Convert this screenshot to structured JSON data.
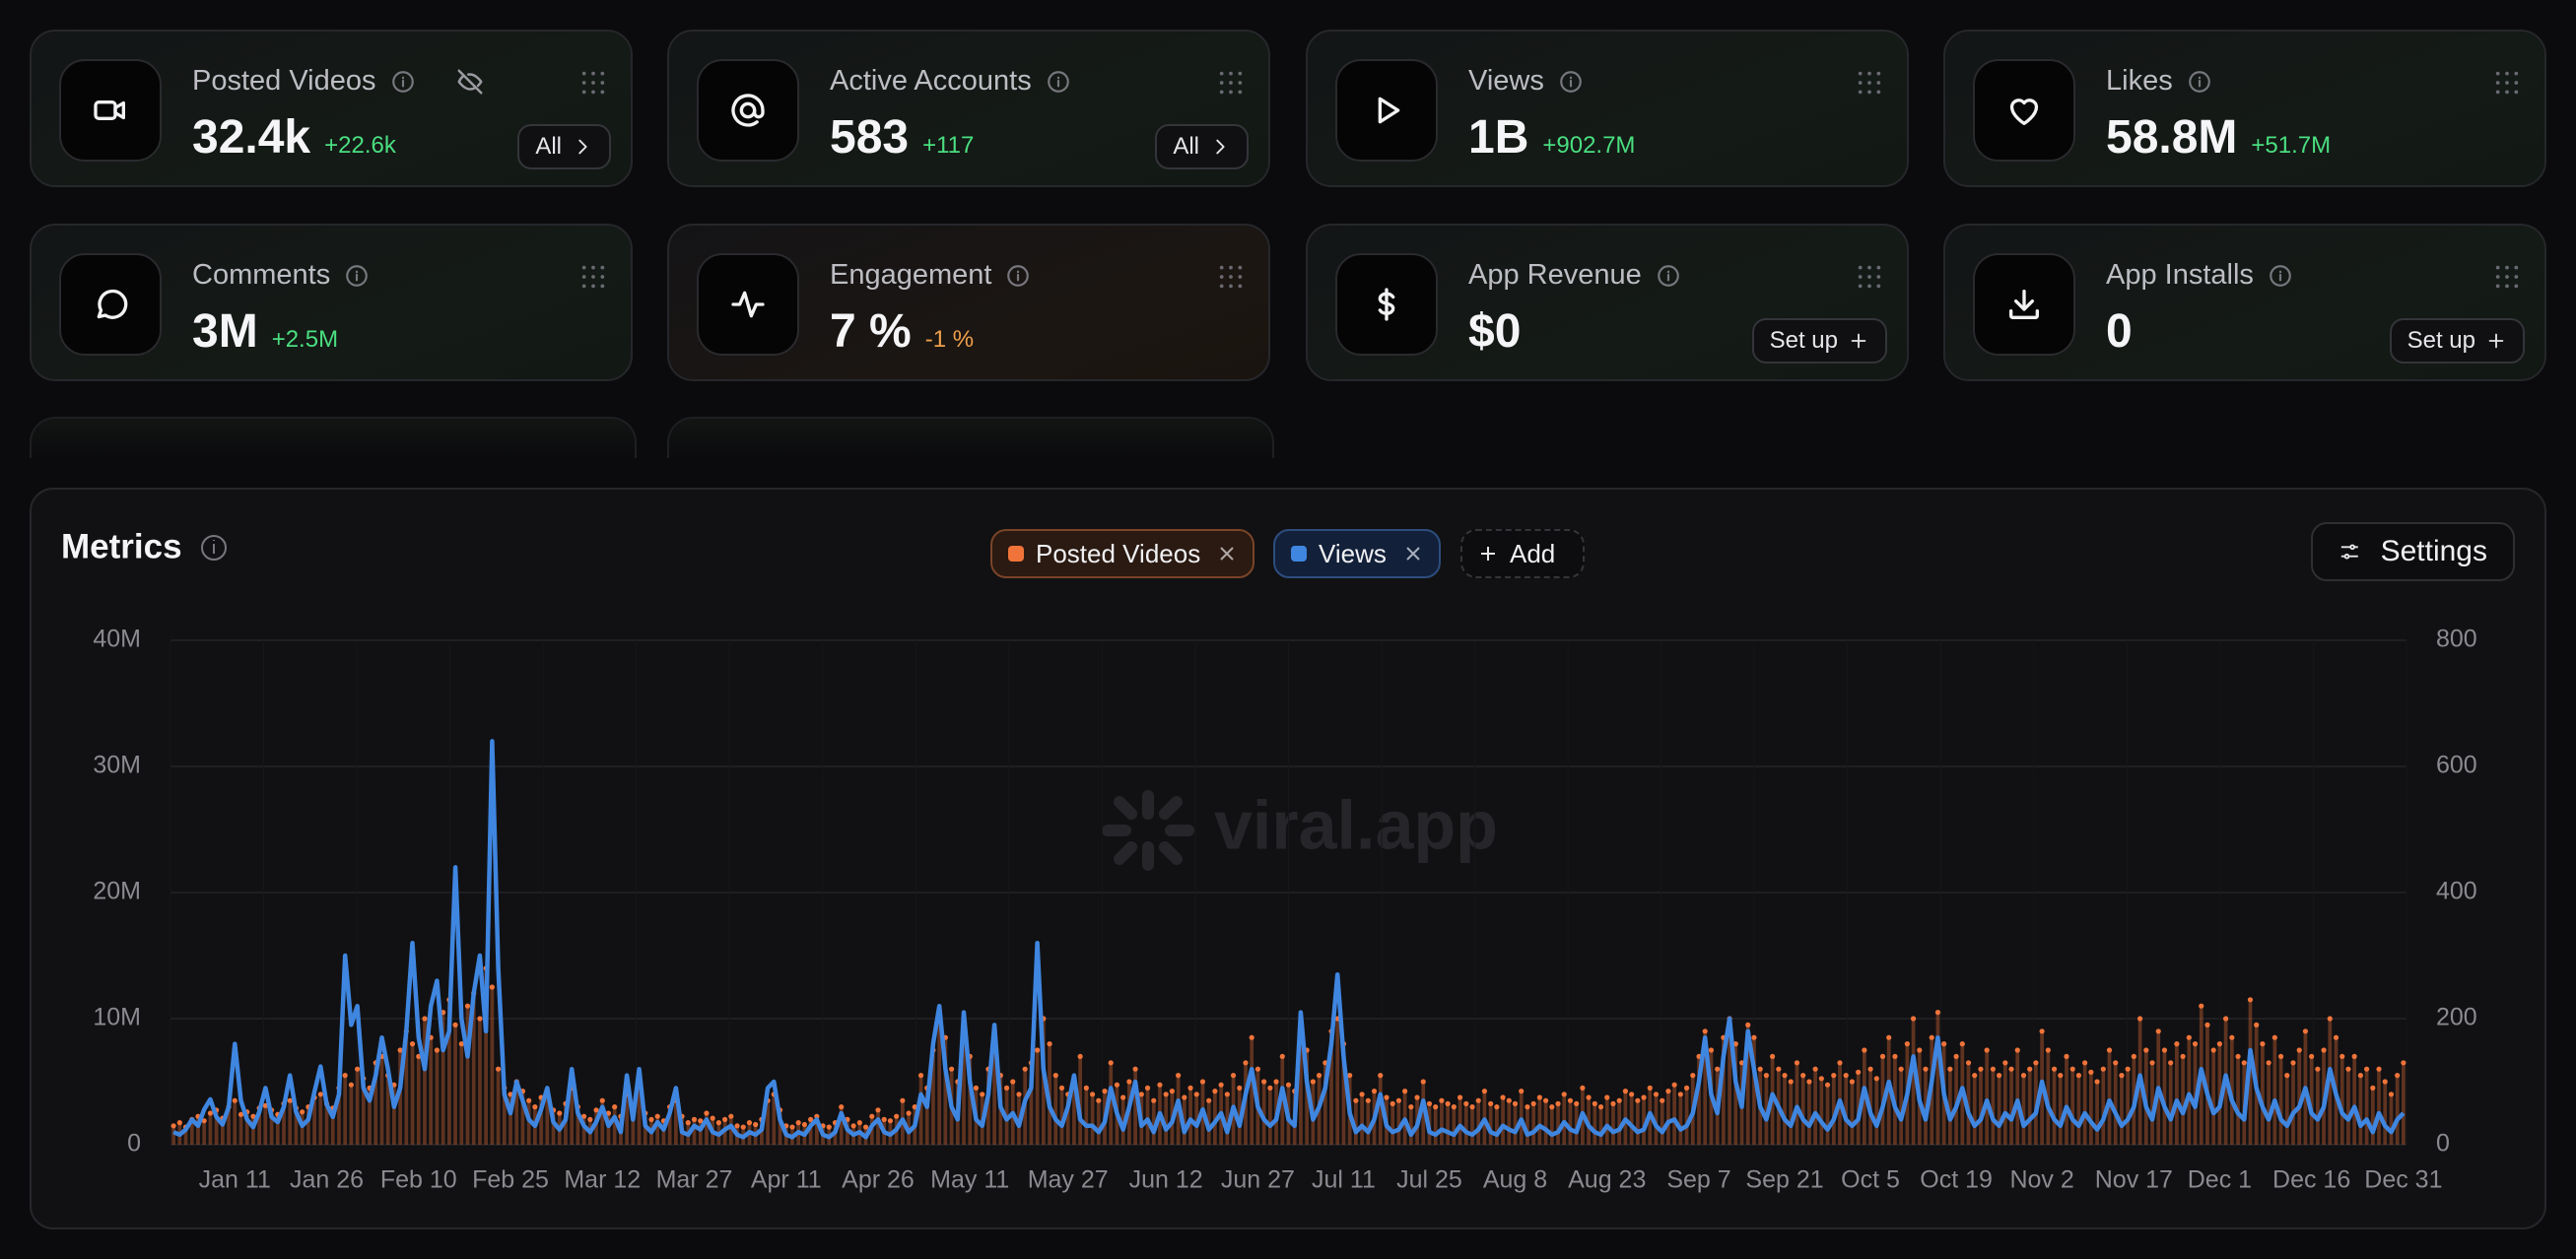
{
  "cards": [
    {
      "title": "Posted Videos",
      "value": "32.4k",
      "change": "+22.6k",
      "change_color": "#4ade80",
      "button": "All"
    },
    {
      "title": "Active Accounts",
      "value": "583",
      "change": "+117",
      "change_color": "#4ade80",
      "button": "All"
    },
    {
      "title": "Views",
      "value": "1B",
      "change": "+902.7M",
      "change_color": "#4ade80"
    },
    {
      "title": "Likes",
      "value": "58.8M",
      "change": "+51.7M",
      "change_color": "#4ade80"
    },
    {
      "title": "Comments",
      "value": "3M",
      "change": "+2.5M",
      "change_color": "#4ade80"
    },
    {
      "title": "Engagement",
      "value": "7 %",
      "change": "-1 %",
      "change_color": "#f0a04b"
    },
    {
      "title": "App Revenue",
      "value": "$0",
      "button": "Set up"
    },
    {
      "title": "App Installs",
      "value": "0",
      "button": "Set up"
    }
  ],
  "add_button": "Add",
  "settings_button": "Settings",
  "watermark": "viral.app",
  "chart_data": {
    "type": "combo",
    "title": "Metrics",
    "grid": true,
    "categories": [
      null,
      null,
      null,
      null,
      null,
      null,
      null,
      null,
      null,
      null,
      "Jan 11",
      null,
      null,
      null,
      null,
      null,
      null,
      null,
      null,
      null,
      null,
      null,
      null,
      null,
      null,
      "Jan 26",
      null,
      null,
      null,
      null,
      null,
      null,
      null,
      null,
      null,
      null,
      null,
      null,
      null,
      null,
      "Feb 10",
      null,
      null,
      null,
      null,
      null,
      null,
      null,
      null,
      null,
      null,
      null,
      null,
      null,
      null,
      "Feb 25",
      null,
      null,
      null,
      null,
      null,
      null,
      null,
      null,
      null,
      null,
      null,
      null,
      null,
      null,
      "Mar 12",
      null,
      null,
      null,
      null,
      null,
      null,
      null,
      null,
      null,
      null,
      null,
      null,
      null,
      null,
      "Mar 27",
      null,
      null,
      null,
      null,
      null,
      null,
      null,
      null,
      null,
      null,
      null,
      null,
      null,
      null,
      "Apr 11",
      null,
      null,
      null,
      null,
      null,
      null,
      null,
      null,
      null,
      null,
      null,
      null,
      null,
      null,
      "Apr 26",
      null,
      null,
      null,
      null,
      null,
      null,
      null,
      null,
      null,
      null,
      null,
      null,
      null,
      null,
      "May 11",
      null,
      null,
      null,
      null,
      null,
      null,
      null,
      null,
      null,
      null,
      null,
      null,
      null,
      null,
      null,
      "May 27",
      null,
      null,
      null,
      null,
      null,
      null,
      null,
      null,
      null,
      null,
      null,
      null,
      null,
      null,
      null,
      "Jun 12",
      null,
      null,
      null,
      null,
      null,
      null,
      null,
      null,
      null,
      null,
      null,
      null,
      null,
      null,
      "Jun 27",
      null,
      null,
      null,
      null,
      null,
      null,
      null,
      null,
      null,
      null,
      null,
      null,
      null,
      "Jul 11",
      null,
      null,
      null,
      null,
      null,
      null,
      null,
      null,
      null,
      null,
      null,
      null,
      null,
      "Jul 25",
      null,
      null,
      null,
      null,
      null,
      null,
      null,
      null,
      null,
      null,
      null,
      null,
      null,
      "Aug 8",
      null,
      null,
      null,
      null,
      null,
      null,
      null,
      null,
      null,
      null,
      null,
      null,
      null,
      null,
      "Aug 23",
      null,
      null,
      null,
      null,
      null,
      null,
      null,
      null,
      null,
      null,
      null,
      null,
      null,
      null,
      "Sep 7",
      null,
      null,
      null,
      null,
      null,
      null,
      null,
      null,
      null,
      null,
      null,
      null,
      null,
      "Sep 21",
      null,
      null,
      null,
      null,
      null,
      null,
      null,
      null,
      null,
      null,
      null,
      null,
      null,
      "Oct 5",
      null,
      null,
      null,
      null,
      null,
      null,
      null,
      null,
      null,
      null,
      null,
      null,
      null,
      "Oct 19",
      null,
      null,
      null,
      null,
      null,
      null,
      null,
      null,
      null,
      null,
      null,
      null,
      null,
      "Nov 2",
      null,
      null,
      null,
      null,
      null,
      null,
      null,
      null,
      null,
      null,
      null,
      null,
      null,
      null,
      "Nov 17",
      null,
      null,
      null,
      null,
      null,
      null,
      null,
      null,
      null,
      null,
      null,
      null,
      null,
      "Dec 1",
      null,
      null,
      null,
      null,
      null,
      null,
      null,
      null,
      null,
      null,
      null,
      null,
      null,
      null,
      "Dec 16",
      null,
      null,
      null,
      null,
      null,
      null,
      null,
      null,
      null,
      null,
      null,
      null,
      null,
      null,
      "Dec 31"
    ],
    "ylim": [
      0,
      40000000
    ],
    "yticks": [
      0,
      {
        "value": 10000000,
        "label": "10M"
      },
      {
        "value": 20000000,
        "label": "20M"
      },
      {
        "value": 30000000,
        "label": "30M"
      },
      {
        "value": 40000000,
        "label": "40M"
      }
    ],
    "y2lim": [
      0,
      800
    ],
    "y2ticks": [
      0,
      200,
      400,
      600,
      800
    ],
    "series": [
      {
        "name": "Posted Videos",
        "type": "bar",
        "axis": "y2",
        "color": "#f0743a",
        "values": [
          30,
          35,
          28,
          40,
          45,
          38,
          50,
          55,
          42,
          60,
          70,
          48,
          52,
          45,
          58,
          62,
          55,
          48,
          65,
          70,
          58,
          52,
          60,
          75,
          80,
          65,
          58,
          90,
          110,
          95,
          120,
          105,
          90,
          130,
          140,
          110,
          95,
          150,
          180,
          160,
          140,
          200,
          170,
          150,
          210,
          230,
          190,
          160,
          220,
          240,
          200,
          280,
          250,
          120,
          90,
          80,
          100,
          85,
          70,
          60,
          75,
          80,
          55,
          50,
          65,
          90,
          60,
          45,
          40,
          55,
          70,
          50,
          60,
          45,
          80,
          55,
          110,
          50,
          40,
          45,
          38,
          60,
          70,
          45,
          35,
          40,
          38,
          50,
          42,
          35,
          40,
          45,
          30,
          28,
          35,
          32,
          40,
          70,
          80,
          55,
          30,
          28,
          35,
          32,
          40,
          45,
          30,
          28,
          35,
          60,
          40,
          30,
          35,
          28,
          45,
          55,
          40,
          38,
          45,
          70,
          50,
          60,
          110,
          90,
          150,
          210,
          170,
          120,
          100,
          190,
          140,
          90,
          80,
          120,
          180,
          110,
          90,
          100,
          80,
          120,
          130,
          150,
          200,
          160,
          110,
          90,
          80,
          100,
          140,
          90,
          80,
          70,
          85,
          130,
          95,
          75,
          100,
          120,
          80,
          90,
          70,
          95,
          80,
          85,
          110,
          75,
          90,
          80,
          100,
          70,
          85,
          95,
          80,
          110,
          90,
          130,
          170,
          120,
          100,
          90,
          100,
          140,
          95,
          85,
          190,
          150,
          100,
          110,
          130,
          180,
          200,
          160,
          110,
          70,
          80,
          70,
          85,
          110,
          75,
          65,
          70,
          85,
          60,
          75,
          100,
          65,
          60,
          70,
          65,
          60,
          75,
          65,
          60,
          70,
          85,
          65,
          60,
          75,
          70,
          65,
          85,
          60,
          65,
          75,
          70,
          60,
          65,
          80,
          70,
          65,
          90,
          75,
          65,
          60,
          75,
          65,
          70,
          85,
          80,
          70,
          75,
          90,
          80,
          70,
          85,
          95,
          80,
          90,
          110,
          140,
          180,
          150,
          120,
          170,
          200,
          160,
          130,
          190,
          170,
          120,
          110,
          140,
          120,
          110,
          100,
          130,
          110,
          100,
          120,
          105,
          95,
          110,
          130,
          110,
          100,
          115,
          150,
          120,
          105,
          140,
          170,
          140,
          120,
          160,
          200,
          150,
          120,
          170,
          210,
          160,
          120,
          140,
          160,
          130,
          110,
          120,
          150,
          120,
          110,
          130,
          120,
          150,
          110,
          120,
          130,
          180,
          150,
          120,
          110,
          140,
          120,
          110,
          130,
          115,
          100,
          120,
          150,
          130,
          110,
          120,
          140,
          200,
          150,
          130,
          180,
          150,
          130,
          160,
          140,
          170,
          160,
          220,
          190,
          150,
          160,
          200,
          170,
          140,
          130,
          230,
          190,
          160,
          130,
          170,
          140,
          110,
          130,
          150,
          180,
          140,
          120,
          150,
          200,
          170,
          140,
          120,
          140,
          110,
          120,
          90,
          120,
          100,
          80,
          110,
          130
        ]
      },
      {
        "name": "Views",
        "type": "line",
        "color": "#3f86e0",
        "values": [
          1000000,
          800000,
          1200000,
          2000000,
          1500000,
          2800000,
          3600000,
          2200000,
          1600000,
          3000000,
          8000000,
          3500000,
          2000000,
          1400000,
          2600000,
          4500000,
          2200000,
          1800000,
          3000000,
          5500000,
          2600000,
          1500000,
          2000000,
          4200000,
          6200000,
          3200000,
          2200000,
          4000000,
          15000000,
          9500000,
          11000000,
          4500000,
          3500000,
          5500000,
          8500000,
          6000000,
          3000000,
          4500000,
          9000000,
          16000000,
          8500000,
          6000000,
          11000000,
          13000000,
          7500000,
          9000000,
          22000000,
          10000000,
          7000000,
          12000000,
          15000000,
          9000000,
          32000000,
          14000000,
          4000000,
          2500000,
          5000000,
          3500000,
          2000000,
          1500000,
          2800000,
          4500000,
          1800000,
          1200000,
          2000000,
          6000000,
          2500000,
          1500000,
          1000000,
          1800000,
          3000000,
          1500000,
          2200000,
          1000000,
          5500000,
          2000000,
          6000000,
          1500000,
          1000000,
          1800000,
          1200000,
          2500000,
          4500000,
          1000000,
          800000,
          1500000,
          1200000,
          2000000,
          1000000,
          800000,
          1200000,
          1500000,
          800000,
          600000,
          1000000,
          800000,
          1200000,
          4500000,
          5000000,
          2000000,
          800000,
          600000,
          1000000,
          800000,
          1500000,
          2000000,
          800000,
          600000,
          1000000,
          2500000,
          1200000,
          800000,
          1000000,
          600000,
          1500000,
          2000000,
          1000000,
          800000,
          1200000,
          2000000,
          1000000,
          1500000,
          4000000,
          3000000,
          8000000,
          11000000,
          6000000,
          3000000,
          2000000,
          10500000,
          5000000,
          2000000,
          1500000,
          4000000,
          9500000,
          3000000,
          2000000,
          2500000,
          1500000,
          3500000,
          4500000,
          16000000,
          6000000,
          3000000,
          2000000,
          1500000,
          3000000,
          5500000,
          2000000,
          1500000,
          1500000,
          1000000,
          1800000,
          4500000,
          2500000,
          1200000,
          3000000,
          5000000,
          1500000,
          2000000,
          1000000,
          2500000,
          1200000,
          1800000,
          3500000,
          1000000,
          2000000,
          1500000,
          2800000,
          1200000,
          1800000,
          2500000,
          1000000,
          3000000,
          1500000,
          4000000,
          6000000,
          3000000,
          2000000,
          1500000,
          2000000,
          4500000,
          2000000,
          1500000,
          10500000,
          5000000,
          2000000,
          3000000,
          4500000,
          8000000,
          13500000,
          7000000,
          2500000,
          1000000,
          1500000,
          1000000,
          2000000,
          4000000,
          1500000,
          1000000,
          1200000,
          2000000,
          800000,
          1500000,
          3500000,
          1000000,
          800000,
          1200000,
          1000000,
          800000,
          1500000,
          1000000,
          800000,
          1200000,
          2000000,
          1000000,
          800000,
          1500000,
          1200000,
          1000000,
          2000000,
          800000,
          1000000,
          1500000,
          1200000,
          800000,
          1000000,
          1800000,
          1200000,
          1000000,
          2500000,
          1500000,
          1000000,
          800000,
          1500000,
          1000000,
          1200000,
          2000000,
          1500000,
          1000000,
          1200000,
          2500000,
          1500000,
          1000000,
          1800000,
          2000000,
          1200000,
          1500000,
          2500000,
          5000000,
          8500000,
          4000000,
          2500000,
          7000000,
          10000000,
          5000000,
          3000000,
          9000000,
          6000000,
          3000000,
          2000000,
          4000000,
          3000000,
          2000000,
          1500000,
          3000000,
          2000000,
          1500000,
          2500000,
          1800000,
          1200000,
          2000000,
          3500000,
          2000000,
          1500000,
          2000000,
          4500000,
          2500000,
          1500000,
          3000000,
          5000000,
          3000000,
          2000000,
          4000000,
          7000000,
          3500000,
          2000000,
          5000000,
          8500000,
          4000000,
          2000000,
          3000000,
          4500000,
          2500000,
          1500000,
          2000000,
          3500000,
          2000000,
          1500000,
          2500000,
          2000000,
          3500000,
          1500000,
          2000000,
          2500000,
          5000000,
          3000000,
          2000000,
          1500000,
          3000000,
          2000000,
          1500000,
          2500000,
          1800000,
          1200000,
          2000000,
          3500000,
          2500000,
          1500000,
          2000000,
          3000000,
          5500000,
          3000000,
          2000000,
          4500000,
          3000000,
          2000000,
          3500000,
          2500000,
          4000000,
          3000000,
          6000000,
          4000000,
          2500000,
          3000000,
          5500000,
          3500000,
          2500000,
          2000000,
          7500000,
          4500000,
          3000000,
          2000000,
          3500000,
          2000000,
          1500000,
          2500000,
          3000000,
          4500000,
          2500000,
          2000000,
          3000000,
          6000000,
          4000000,
          2500000,
          2000000,
          3000000,
          1500000,
          2000000,
          1000000,
          2500000,
          1500000,
          1000000,
          2000000,
          2500000
        ]
      }
    ]
  }
}
